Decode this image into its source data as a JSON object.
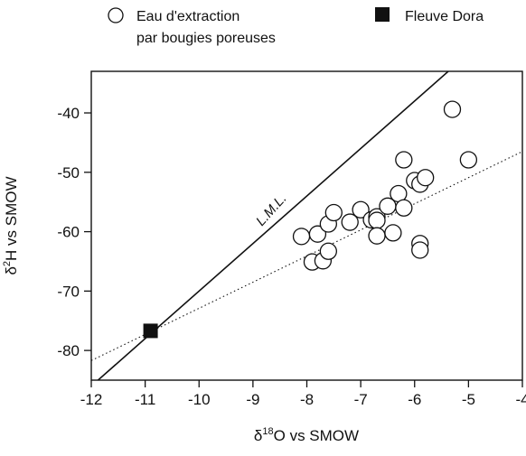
{
  "chart_data": {
    "type": "scatter",
    "xlabel": "δ¹⁸O vs SMOW",
    "xlabel_parts": {
      "delta": "δ",
      "sup": "18",
      "rest": "O vs SMOW"
    },
    "ylabel": "δ²H vs SMOW",
    "ylabel_parts": {
      "delta": "δ",
      "sup": "2",
      "rest": "H vs SMOW"
    },
    "xlim": [
      -12,
      -4
    ],
    "ylim": [
      -85,
      -33
    ],
    "xticks": [
      -12,
      -11,
      -10,
      -9,
      -8,
      -7,
      -6,
      -5,
      -4
    ],
    "yticks": [
      -40,
      -50,
      -60,
      -70,
      -80
    ],
    "grid": false,
    "legend_position": "top",
    "legend": [
      {
        "name": "Eau d'extraction",
        "name_line2": "par bougies poreuses",
        "marker": "open-circle"
      },
      {
        "name": "Fleuve Dora",
        "marker": "filled-square"
      }
    ],
    "series": [
      {
        "name": "Eau d'extraction par bougies poreuses",
        "marker": "open-circle",
        "points": [
          {
            "x": -8.1,
            "y": -60.8
          },
          {
            "x": -7.9,
            "y": -65.1
          },
          {
            "x": -7.8,
            "y": -60.4
          },
          {
            "x": -7.7,
            "y": -64.9
          },
          {
            "x": -7.6,
            "y": -63.3
          },
          {
            "x": -7.6,
            "y": -58.7
          },
          {
            "x": -7.5,
            "y": -56.8
          },
          {
            "x": -7.2,
            "y": -58.4
          },
          {
            "x": -7.0,
            "y": -56.3
          },
          {
            "x": -6.8,
            "y": -58.0
          },
          {
            "x": -6.7,
            "y": -57.5
          },
          {
            "x": -6.7,
            "y": -58.1
          },
          {
            "x": -6.7,
            "y": -60.7
          },
          {
            "x": -6.5,
            "y": -55.7
          },
          {
            "x": -6.4,
            "y": -60.2
          },
          {
            "x": -6.3,
            "y": -53.6
          },
          {
            "x": -6.2,
            "y": -56.0
          },
          {
            "x": -6.2,
            "y": -47.9
          },
          {
            "x": -6.0,
            "y": -51.4
          },
          {
            "x": -5.9,
            "y": -52.0
          },
          {
            "x": -5.9,
            "y": -62.0
          },
          {
            "x": -5.9,
            "y": -63.1
          },
          {
            "x": -5.8,
            "y": -50.9
          },
          {
            "x": -5.3,
            "y": -39.4
          },
          {
            "x": -5.0,
            "y": -47.9
          }
        ]
      },
      {
        "name": "Fleuve Dora",
        "marker": "filled-square",
        "points": [
          {
            "x": -10.9,
            "y": -76.7
          }
        ]
      }
    ],
    "lines": [
      {
        "name": "L.M.L.",
        "label": "L.M.L.",
        "style": "solid",
        "slope": 8,
        "intercept": 10
      },
      {
        "name": "fit",
        "label": "",
        "style": "dotted",
        "slope": 4.4,
        "intercept": -28.9
      }
    ],
    "annotations": [
      {
        "text": "L.M.L.",
        "x": -8.6,
        "y": -56.8
      }
    ]
  }
}
